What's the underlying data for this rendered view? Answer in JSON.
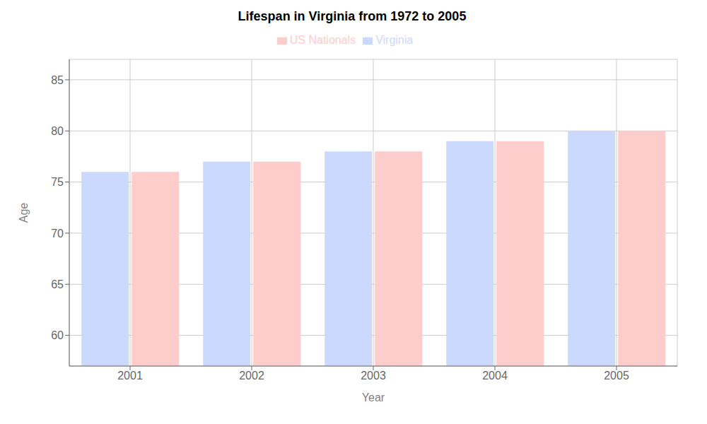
{
  "chart_data": {
    "type": "bar",
    "title": "Lifespan in Virginia from 1972 to 2005",
    "xlabel": "Year",
    "ylabel": "Age",
    "categories": [
      "2001",
      "2002",
      "2003",
      "2004",
      "2005"
    ],
    "series": [
      {
        "name": "Virginia",
        "color": "#ccd9ff",
        "values": [
          76,
          77,
          78,
          79,
          80
        ]
      },
      {
        "name": "US Nationals",
        "color": "#ffcccc",
        "values": [
          76,
          77,
          78,
          79,
          80
        ]
      }
    ],
    "ylim": [
      57,
      87
    ],
    "yticks": [
      60,
      65,
      70,
      75,
      80,
      85
    ],
    "grid": true,
    "legend": "top"
  }
}
